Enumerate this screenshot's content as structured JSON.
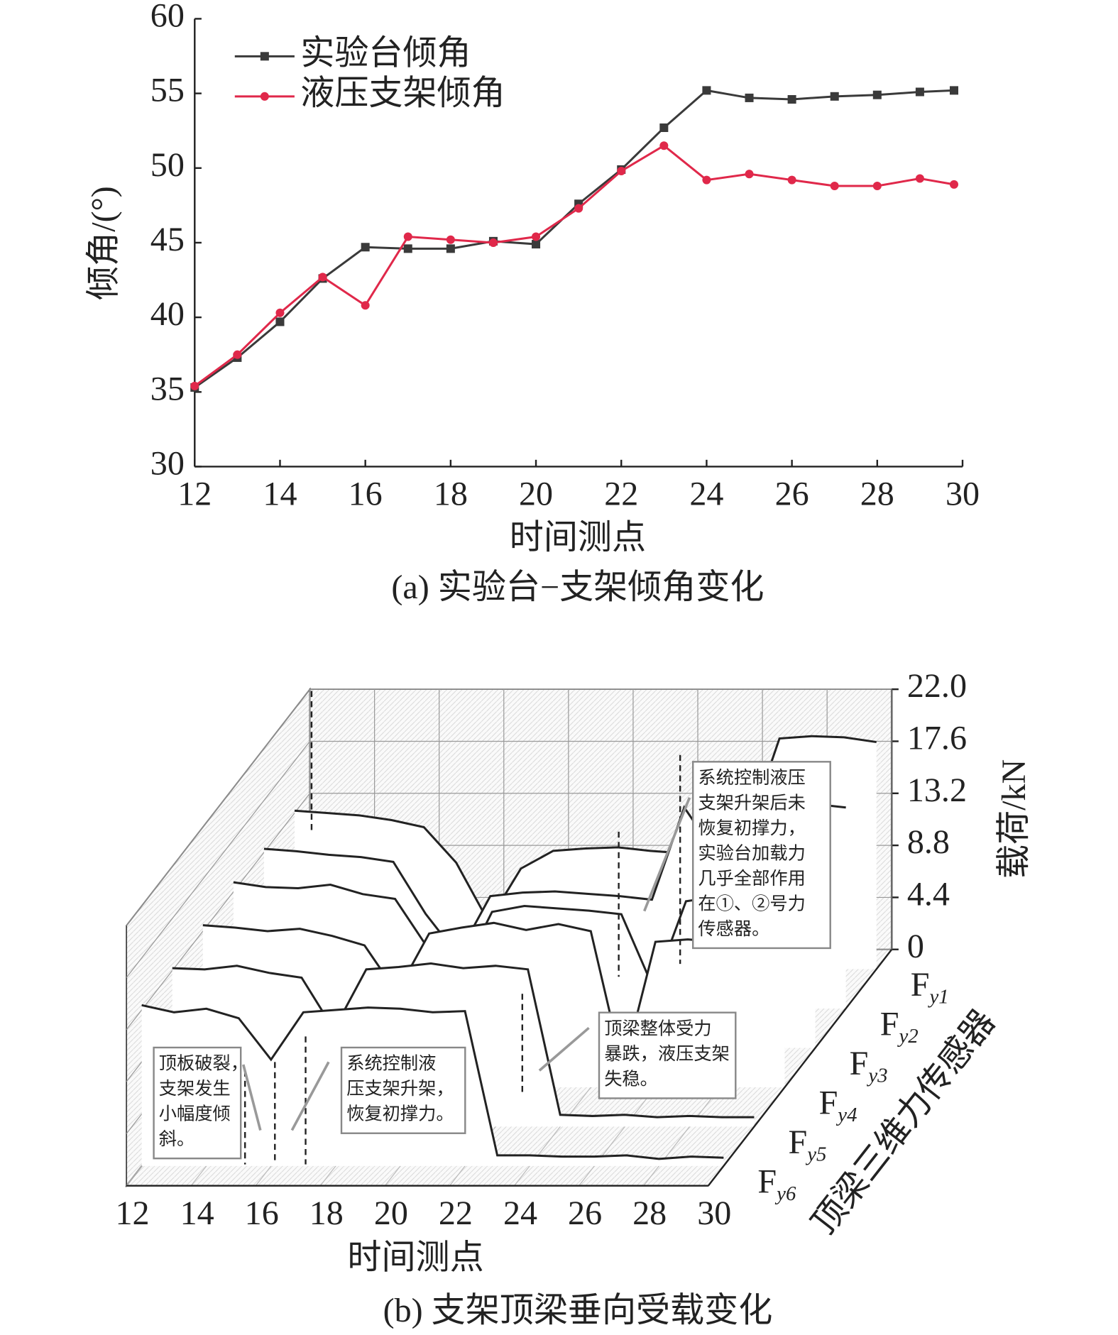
{
  "chart_data": [
    {
      "type": "line",
      "caption": "(a) 实验台−支架倾角变化",
      "x_label": "时间测点",
      "y_label": "倾角/(°)",
      "x": [
        12,
        13,
        14,
        15,
        16,
        17,
        18,
        19,
        20,
        21,
        22,
        23,
        24,
        25,
        26,
        27,
        28,
        29,
        29.8
      ],
      "series": [
        {
          "name": "实验台倾角",
          "color": "#3a3a3a",
          "marker": "square",
          "values": [
            35.3,
            37.3,
            39.7,
            42.6,
            44.7,
            44.6,
            44.6,
            45.1,
            44.9,
            47.6,
            49.9,
            52.7,
            55.2,
            54.7,
            54.6,
            54.8,
            54.9,
            55.1,
            55.2
          ]
        },
        {
          "name": "液压支架倾角",
          "color": "#e0284a",
          "marker": "circle",
          "values": [
            35.4,
            37.5,
            40.3,
            42.7,
            40.8,
            45.4,
            45.2,
            45.0,
            45.4,
            47.3,
            49.8,
            51.5,
            49.2,
            49.6,
            49.2,
            48.8,
            48.8,
            49.3,
            48.9
          ]
        }
      ],
      "xlim": [
        12,
        30
      ],
      "xticks": [
        12,
        14,
        16,
        18,
        20,
        22,
        24,
        26,
        28,
        30
      ],
      "ylim": [
        30,
        60
      ],
      "yticks": [
        30,
        35,
        40,
        45,
        50,
        55,
        60
      ],
      "legend": "upper left"
    },
    {
      "type": "waterfall3d",
      "caption": "(b) 支架顶梁垂向受载变化",
      "x_label": "时间测点",
      "z_label": "载荷/kN",
      "depth_label": "顶梁三维力传感器",
      "x": [
        12,
        13,
        14,
        15,
        16,
        17,
        18,
        19,
        20,
        21,
        22,
        23,
        24,
        25,
        26,
        27,
        28,
        29,
        30
      ],
      "xlim": [
        12,
        30
      ],
      "xticks": [
        12,
        14,
        16,
        18,
        20,
        22,
        24,
        26,
        28,
        30
      ],
      "zlim": [
        0,
        22
      ],
      "zticks": [
        0,
        4.4,
        8.8,
        13.2,
        17.6,
        {
          "value": 22,
          "label": "22.0"
        }
      ],
      "series": [
        {
          "name": "Fy1",
          "values": [
            13.4,
            13.2,
            13.0,
            12.6,
            12.0,
            9.0,
            4.0,
            8.5,
            10.0,
            10.2,
            10.3,
            10.0,
            9.8,
            13.5,
            11.5,
            19.5,
            19.7,
            19.6,
            19.2
          ]
        },
        {
          "name": "Fy2",
          "values": [
            13.5,
            13.3,
            13.0,
            12.8,
            12.4,
            8.0,
            4.5,
            9.5,
            9.8,
            9.9,
            9.7,
            9.5,
            9.2,
            17.0,
            13.0,
            18.0,
            17.5,
            17.3,
            17.0
          ]
        },
        {
          "name": "Fy3",
          "values": [
            14.0,
            13.6,
            13.5,
            13.8,
            13.0,
            12.6,
            8.5,
            6.0,
            11.5,
            12.0,
            11.8,
            11.6,
            11.3,
            5.0,
            12.4,
            12.8,
            12.6,
            12.5,
            12.7
          ]
        },
        {
          "name": "Fy4",
          "values": [
            13.7,
            13.5,
            13.2,
            13.4,
            12.8,
            12.0,
            8.0,
            13.0,
            13.5,
            13.9,
            13.3,
            13.8,
            13.2,
            1.5,
            12.3,
            12.5,
            12.3,
            12.4,
            11.8
          ]
        },
        {
          "name": "Fy5",
          "values": [
            13.4,
            13.3,
            13.6,
            13.0,
            12.6,
            8.2,
            13.3,
            13.5,
            13.8,
            13.4,
            13.6,
            13.3,
            1.0,
            0.9,
            1.0,
            0.8,
            0.9,
            0.8,
            0.8
          ]
        },
        {
          "name": "Fy6",
          "values": [
            13.6,
            13.0,
            13.3,
            12.5,
            9.0,
            13.0,
            13.2,
            13.4,
            13.3,
            13.0,
            13.1,
            0.9,
            0.9,
            0.8,
            0.8,
            0.9,
            0.6,
            0.8,
            0.7
          ]
        }
      ],
      "annotations": [
        {
          "lines": [
            "顶板破裂，",
            "支架发生",
            "小幅度倾",
            "斜。"
          ]
        },
        {
          "lines": [
            "系统控制液",
            "压支架升架，",
            "恢复初撑力。"
          ]
        },
        {
          "lines": [
            "顶梁整体受力",
            "暴跌，液压支架",
            "失稳。"
          ]
        },
        {
          "lines": [
            "系统控制液压",
            "支架升架后未",
            "恢复初撑力，",
            "实验台加载力",
            "几乎全部作用",
            "在①、②号力",
            "传感器。"
          ]
        }
      ]
    }
  ]
}
